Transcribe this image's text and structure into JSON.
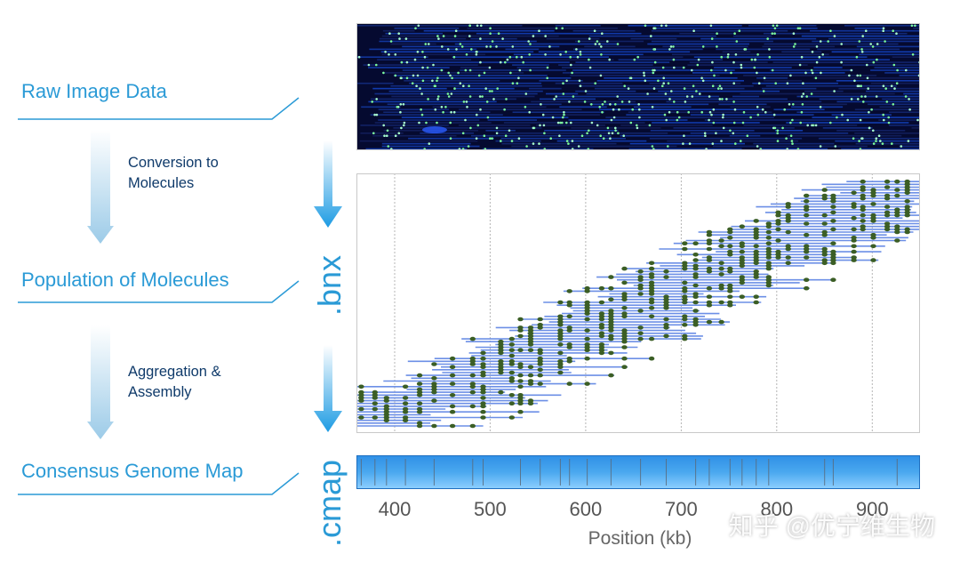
{
  "stages": {
    "raw": "Raw Image Data",
    "population": "Population of Molecules",
    "consensus": "Consensus Genome Map"
  },
  "steps": {
    "conversion": [
      "Conversion to",
      "Molecules"
    ],
    "aggregation": [
      "Aggregation &",
      "Assembly"
    ]
  },
  "formats": {
    "bnx": ".bnx",
    "cmap": ".cmap"
  },
  "chart_data": {
    "type": "scatter",
    "title": "",
    "xlabel": "Position (kb)",
    "ylabel": "",
    "x_ticks": [
      "400",
      "500",
      "600",
      "700",
      "800",
      "900"
    ],
    "xlim": [
      360,
      950
    ],
    "grid": true,
    "description_series": "Population of molecules aligned along genome position; each molecule is a line with label sites",
    "molecule_span_kb": [
      360,
      950
    ],
    "molecule_start_range_kb": [
      360,
      930
    ]
  },
  "watermark": "知乎 @优宁维生物",
  "colors": {
    "accent": "#2a9ad6",
    "dark_text": "#0f3a6a",
    "molecule_line": "#6c8fe6",
    "label_dot": "#3b5e25",
    "cmap_bar": "#4aa8ef"
  }
}
